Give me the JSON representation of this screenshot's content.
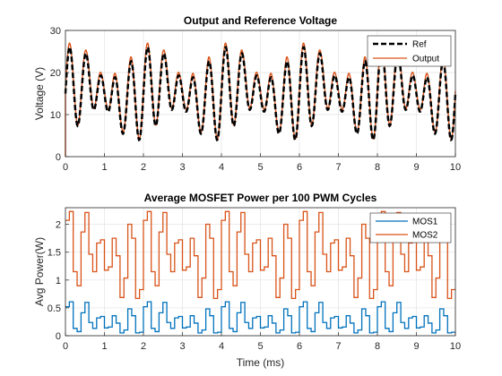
{
  "chart_data": [
    {
      "type": "line",
      "title": "Output and Reference Voltage",
      "xlabel": "",
      "ylabel": "Voltage (V)",
      "xlim": [
        0,
        10
      ],
      "ylim": [
        0,
        30
      ],
      "xticks": [
        "0",
        "1",
        "2",
        "3",
        "4",
        "5",
        "6",
        "7",
        "8",
        "9",
        "10"
      ],
      "yticks": [
        "0",
        "10",
        "20",
        "30"
      ],
      "grid": true,
      "legend_position": "top-right",
      "ref_model": {
        "offset": 15,
        "components": [
          {
            "amplitude": 7,
            "frequency_per_ms": 2.5,
            "phase": 0
          },
          {
            "amplitude": 3.5,
            "frequency_per_ms": 2.0,
            "phase": 0
          },
          {
            "amplitude": 2.0,
            "frequency_per_ms": 0.5,
            "phase": 0
          }
        ]
      },
      "series": [
        {
          "name": "Ref",
          "color": "#000000",
          "style": "dashed"
        },
        {
          "name": "Output",
          "color": "#d95319",
          "style": "solid",
          "start_value": 0
        }
      ]
    },
    {
      "type": "line",
      "title": "Average MOSFET Power per 100 PWM Cycles",
      "xlabel": "Time (ms)",
      "ylabel": "Avg Power(W)",
      "xlim": [
        0,
        10
      ],
      "ylim": [
        0,
        2.3
      ],
      "xticks": [
        "0",
        "1",
        "2",
        "3",
        "4",
        "5",
        "6",
        "7",
        "8",
        "9",
        "10"
      ],
      "yticks": [
        "0",
        "0.5",
        "1",
        "1.5",
        "2"
      ],
      "grid": true,
      "legend_position": "top-right",
      "step_ms": 0.1,
      "series": [
        {
          "name": "MOS1",
          "color": "#0072bd",
          "style": "stairs",
          "model": "mos1"
        },
        {
          "name": "MOS2",
          "color": "#d95319",
          "style": "stairs",
          "model": "mos2"
        }
      ]
    }
  ]
}
